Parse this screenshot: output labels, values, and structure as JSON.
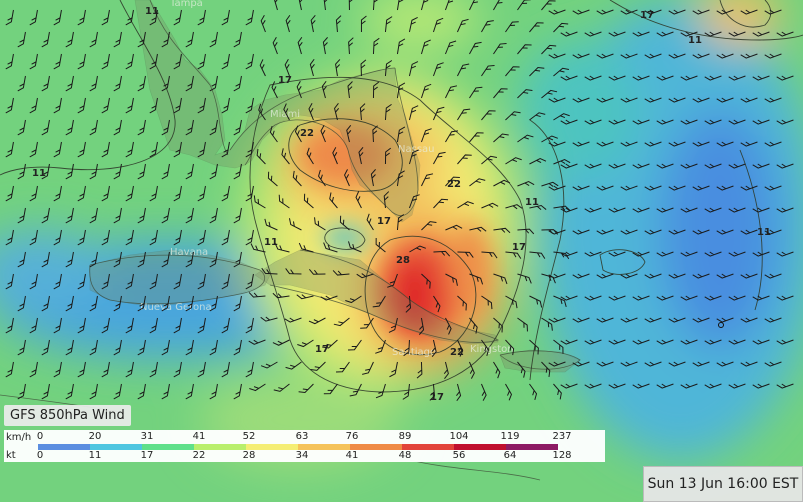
{
  "map": {
    "contour_labels": [
      "11",
      "17",
      "11",
      "17",
      "22",
      "11",
      "17",
      "11",
      "22",
      "17",
      "28",
      "11",
      "17",
      "11",
      "22",
      "17"
    ],
    "place_labels": [
      "Tampa",
      "Miami",
      "Nassau",
      "Havana",
      "Nueva Gerona",
      "Santiago",
      "Kingston"
    ]
  },
  "legend": {
    "title": "GFS 850hPa Wind",
    "units": {
      "kmh": "km/h",
      "kt": "kt"
    },
    "kmh_ticks": [
      "0",
      "20",
      "31",
      "41",
      "52",
      "63",
      "76",
      "89",
      "104",
      "119",
      "237"
    ],
    "kt_ticks": [
      "0",
      "11",
      "17",
      "22",
      "28",
      "34",
      "41",
      "48",
      "56",
      "64",
      "128"
    ],
    "colors": [
      "#5b8ee0",
      "#4fc6e0",
      "#5fe08a",
      "#b9ef6c",
      "#f5ee74",
      "#f5c35a",
      "#ef8b45",
      "#e2443a",
      "#c0102e",
      "#8d1b63",
      "#5a2380"
    ]
  },
  "timestamp": "Sun 13 Jun 16:00 EST"
}
